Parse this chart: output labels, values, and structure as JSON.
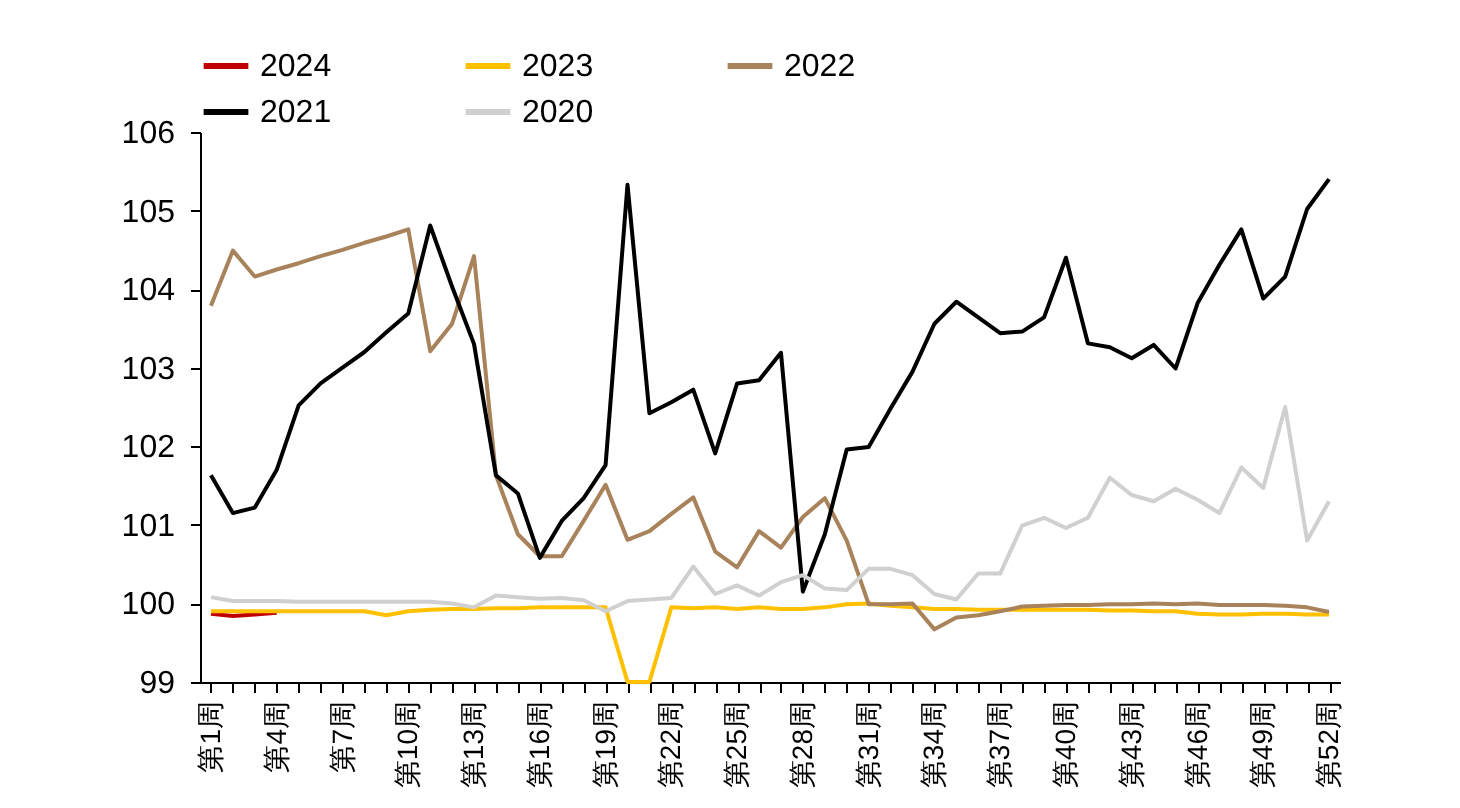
{
  "chart_data": {
    "type": "line",
    "categories": [
      "第1周",
      null,
      null,
      "第4周",
      null,
      null,
      "第7周",
      null,
      null,
      "第10周",
      null,
      null,
      "第13周",
      null,
      null,
      "第16周",
      null,
      null,
      "第19周",
      null,
      null,
      "第22周",
      null,
      null,
      "第25周",
      null,
      null,
      "第28周",
      null,
      null,
      "第31周",
      null,
      null,
      "第34周",
      null,
      null,
      "第37周",
      null,
      null,
      "第40周",
      null,
      null,
      "第43周",
      null,
      null,
      "第46周",
      null,
      null,
      "第49周",
      null,
      null,
      "第52周"
    ],
    "series": [
      {
        "name": "2024",
        "color": "#c00000",
        "values": [
          99.87,
          99.84,
          99.86,
          99.88,
          null,
          null,
          null,
          null,
          null,
          null,
          null,
          null,
          null,
          null,
          null,
          null,
          null,
          null,
          null,
          null,
          null,
          null,
          null,
          null,
          null,
          null,
          null,
          null,
          null,
          null,
          null,
          null,
          null,
          null,
          null,
          null,
          null,
          null,
          null,
          null,
          null,
          null,
          null,
          null,
          null,
          null,
          null,
          null,
          null,
          null,
          null,
          null
        ]
      },
      {
        "name": "2023",
        "color": "#ffc000",
        "values": [
          99.9,
          99.9,
          99.9,
          99.9,
          99.9,
          99.9,
          99.9,
          99.9,
          99.85,
          99.9,
          99.92,
          99.93,
          99.93,
          99.94,
          99.94,
          99.95,
          99.95,
          99.95,
          99.95,
          99.0,
          99.0,
          99.95,
          99.94,
          99.95,
          99.93,
          99.95,
          99.93,
          99.93,
          99.95,
          99.99,
          100.0,
          99.97,
          99.95,
          99.93,
          99.93,
          99.92,
          99.92,
          99.92,
          99.92,
          99.92,
          99.92,
          99.91,
          99.91,
          99.9,
          99.9,
          99.87,
          99.86,
          99.86,
          99.87,
          99.87,
          99.86,
          99.86
        ]
      },
      {
        "name": "2022",
        "color": "#a8825a",
        "values": [
          103.79,
          104.49,
          104.16,
          104.25,
          104.33,
          104.42,
          104.5,
          104.59,
          104.67,
          104.76,
          103.21,
          103.56,
          104.42,
          101.63,
          100.88,
          100.6,
          100.6,
          101.05,
          101.51,
          100.81,
          100.92,
          101.14,
          101.35,
          100.66,
          100.46,
          100.92,
          100.71,
          101.1,
          101.34,
          100.8,
          99.99,
          99.99,
          100.0,
          99.67,
          99.82,
          99.85,
          99.9,
          99.96,
          99.97,
          99.98,
          99.98,
          99.99,
          99.99,
          100.0,
          99.99,
          100.0,
          99.98,
          99.98,
          99.98,
          99.97,
          99.95,
          99.89
        ]
      },
      {
        "name": "2021",
        "color": "#000000",
        "values": [
          101.63,
          101.15,
          101.22,
          101.7,
          102.52,
          102.8,
          103.0,
          103.2,
          103.45,
          103.69,
          104.81,
          104.03,
          103.3,
          101.63,
          101.4,
          100.58,
          101.05,
          101.34,
          101.76,
          105.33,
          102.42,
          102.56,
          102.72,
          101.91,
          102.8,
          102.84,
          103.19,
          100.15,
          100.88,
          101.96,
          101.99,
          102.48,
          102.95,
          103.56,
          103.84,
          103.64,
          103.44,
          103.46,
          103.64,
          104.4,
          103.31,
          103.26,
          103.12,
          103.29,
          102.99,
          103.82,
          104.31,
          104.76,
          103.88,
          104.16,
          105.02,
          105.4
        ]
      },
      {
        "name": "2020",
        "color": "#d0d0d0",
        "values": [
          100.08,
          100.03,
          100.03,
          100.03,
          100.02,
          100.02,
          100.02,
          100.02,
          100.02,
          100.02,
          100.02,
          100.0,
          99.95,
          100.1,
          100.08,
          100.06,
          100.07,
          100.04,
          99.9,
          100.03,
          100.05,
          100.07,
          100.47,
          100.12,
          100.23,
          100.1,
          100.27,
          100.36,
          100.19,
          100.17,
          100.44,
          100.44,
          100.36,
          100.12,
          100.05,
          100.38,
          100.38,
          100.99,
          101.09,
          100.96,
          101.09,
          101.6,
          101.38,
          101.3,
          101.46,
          101.32,
          101.15,
          101.73,
          101.47,
          102.5,
          100.8,
          101.3
        ]
      }
    ],
    "ylim": [
      99,
      106
    ],
    "yticks": [
      99,
      100,
      101,
      102,
      103,
      104,
      105,
      106
    ],
    "grid": false,
    "legend": "top",
    "marker": "none",
    "line_style": "solid"
  }
}
